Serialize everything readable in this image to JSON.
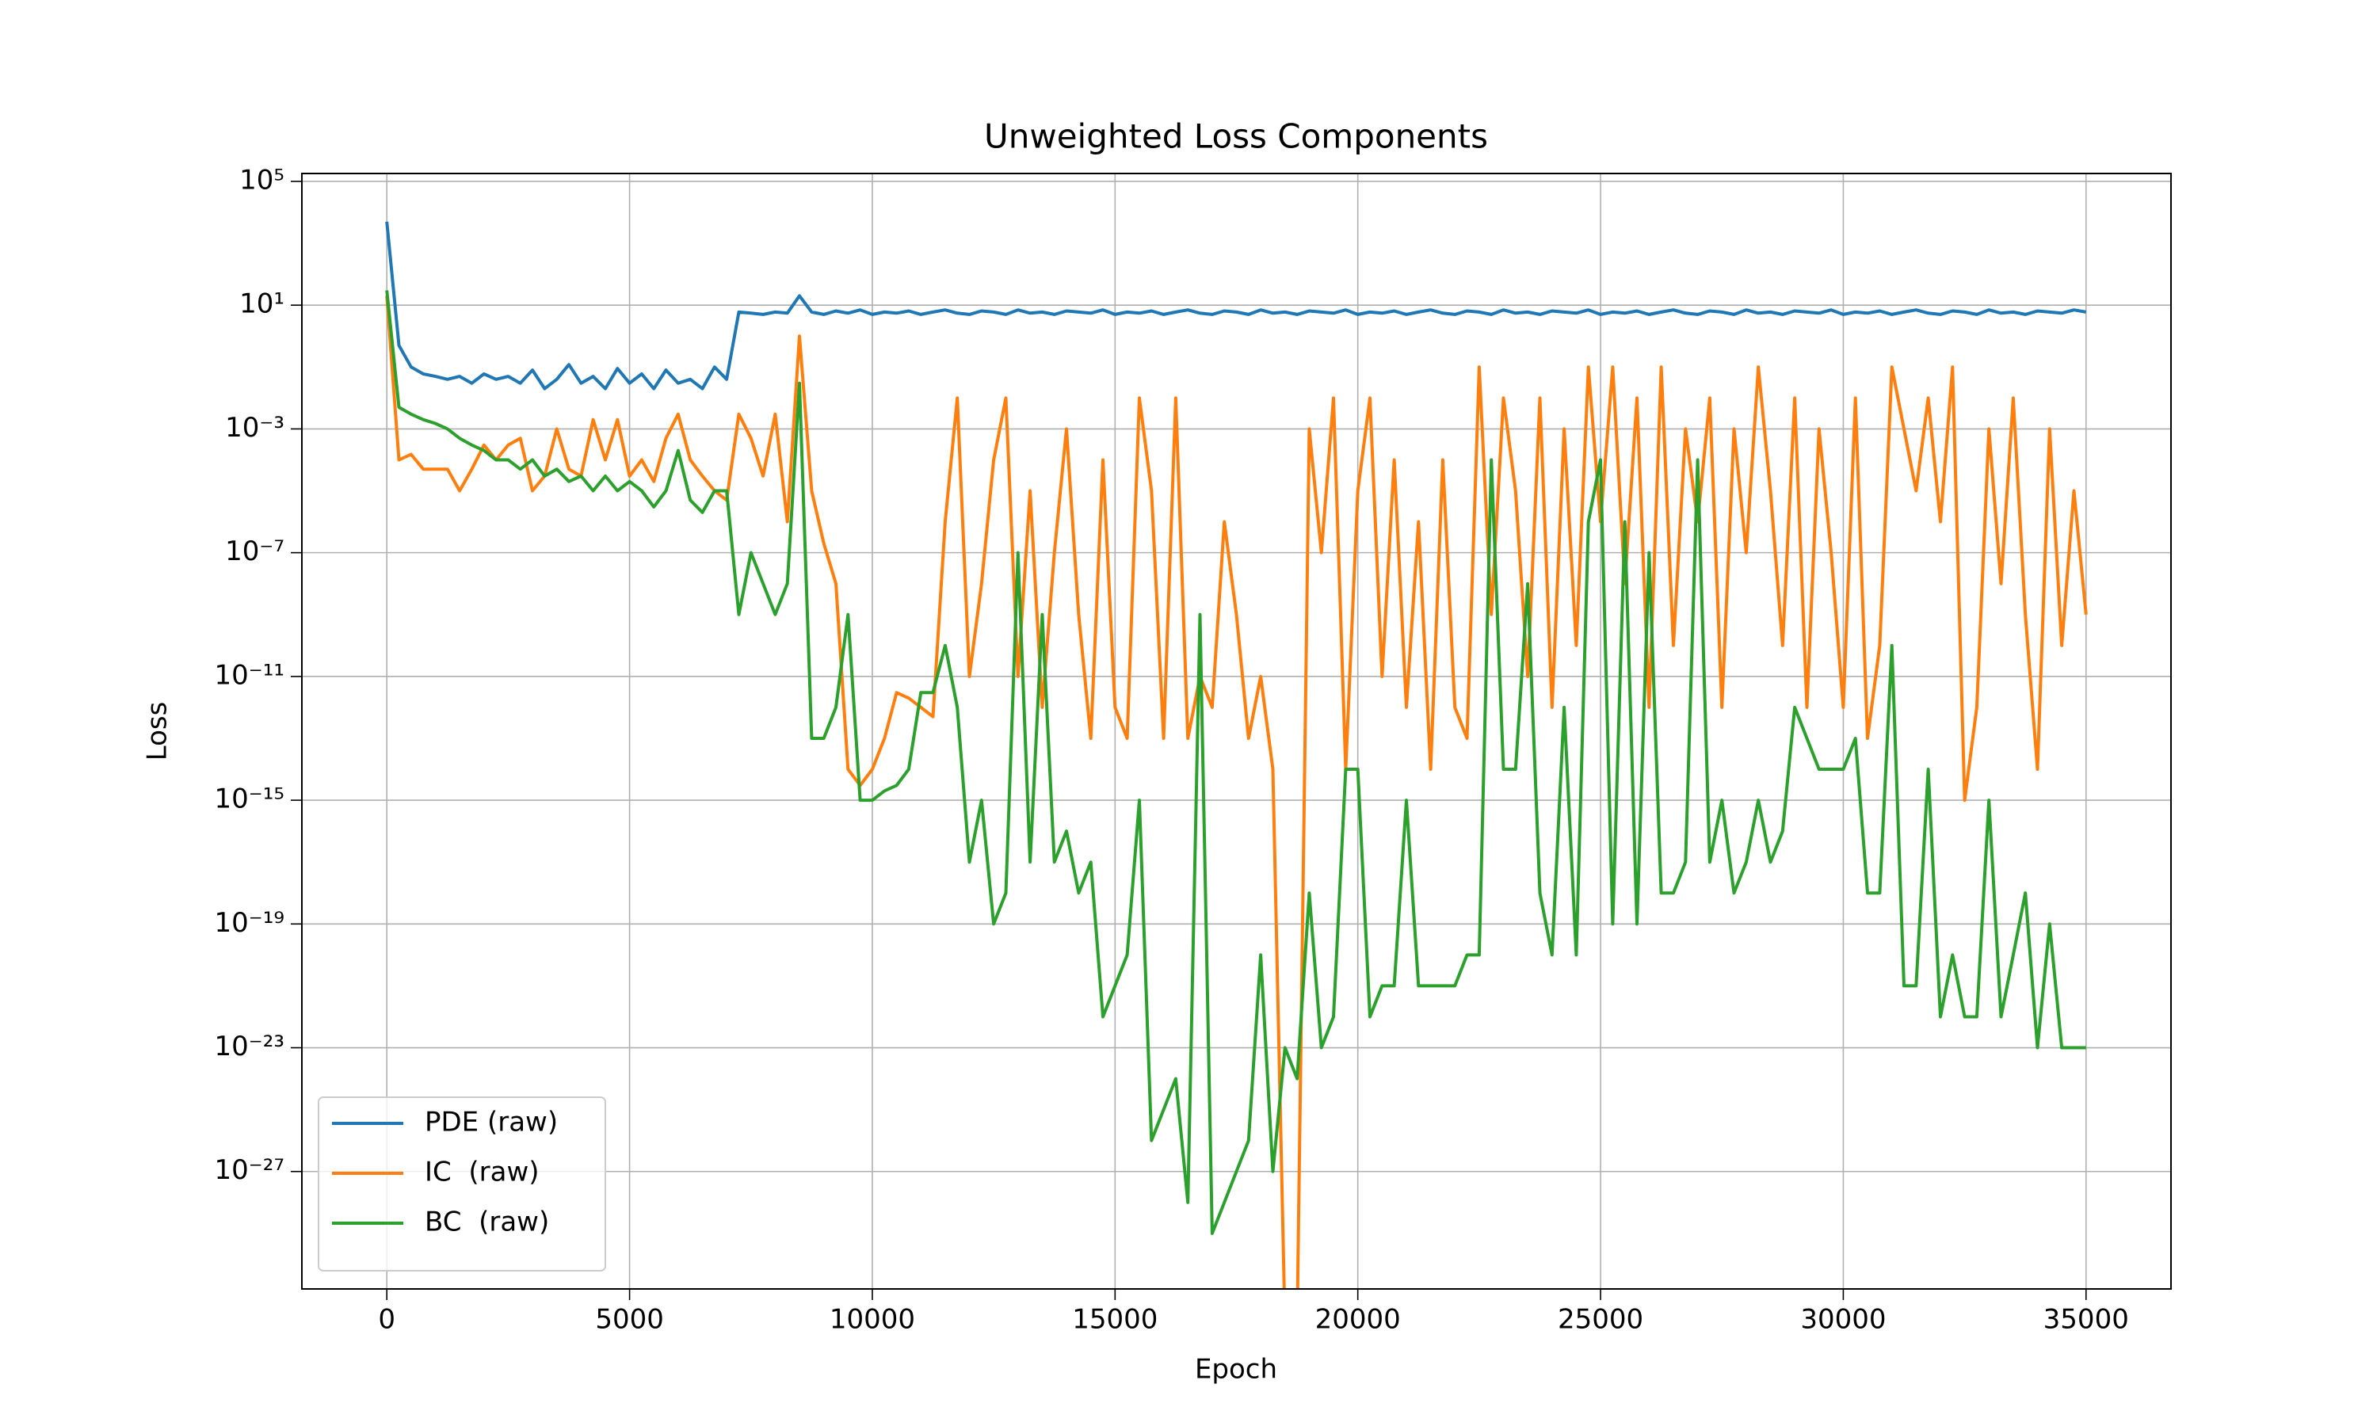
{
  "chart_data": {
    "type": "line",
    "title": "Unweighted Loss Components",
    "x_label": "Epoch",
    "y_label": "Loss",
    "yscale": "log",
    "grid": true,
    "legend": "lower left",
    "xlim": [
      -1750,
      36750
    ],
    "xticks": [
      0,
      5000,
      10000,
      15000,
      20000,
      25000,
      30000,
      35000
    ],
    "ylim": [
      1.6e-31,
      180000.0
    ],
    "yticks": [
      {
        "value": 100000.0,
        "label": "10⁵"
      },
      {
        "value": 10,
        "label": "10¹"
      },
      {
        "value": 0.001,
        "label": "10⁻³"
      },
      {
        "value": 1e-07,
        "label": "10⁻⁷"
      },
      {
        "value": 1e-11,
        "label": "10⁻¹¹"
      },
      {
        "value": 1e-15,
        "label": "10⁻¹⁵"
      },
      {
        "value": 1e-19,
        "label": "10⁻¹⁹"
      },
      {
        "value": 1e-23,
        "label": "10⁻²³"
      },
      {
        "value": 1e-27,
        "label": "10⁻²⁷"
      }
    ],
    "x": [
      0,
      250,
      500,
      750,
      1000,
      1250,
      1500,
      1750,
      2000,
      2250,
      2500,
      2750,
      3000,
      3250,
      3500,
      3750,
      4000,
      4250,
      4500,
      4750,
      5000,
      5250,
      5500,
      5750,
      6000,
      6250,
      6500,
      6750,
      7000,
      7250,
      7500,
      7750,
      8000,
      8250,
      8500,
      8750,
      9000,
      9250,
      9500,
      9750,
      10000,
      10250,
      10500,
      10750,
      11000,
      11250,
      11500,
      11750,
      12000,
      12250,
      12500,
      12750,
      13000,
      13250,
      13500,
      13750,
      14000,
      14250,
      14500,
      14750,
      15000,
      15250,
      15500,
      15750,
      16000,
      16250,
      16500,
      16750,
      17000,
      17250,
      17500,
      17750,
      18000,
      18250,
      18500,
      18750,
      19000,
      19250,
      19500,
      19750,
      20000,
      20250,
      20500,
      20750,
      21000,
      21250,
      21500,
      21750,
      22000,
      22250,
      22500,
      22750,
      23000,
      23250,
      23500,
      23750,
      24000,
      24250,
      24500,
      24750,
      25000,
      25250,
      25500,
      25750,
      26000,
      26250,
      26500,
      26750,
      27000,
      27250,
      27500,
      27750,
      28000,
      28250,
      28500,
      28750,
      29000,
      29250,
      29500,
      29750,
      30000,
      30250,
      30500,
      30750,
      31000,
      31250,
      31500,
      31750,
      32000,
      32250,
      32500,
      32750,
      33000,
      33250,
      33500,
      33750,
      34000,
      34250,
      34500,
      34750,
      35000
    ],
    "series": [
      {
        "name": "PDE (raw)",
        "color": "#1f77b4",
        "values": [
          5000,
          0.5,
          0.1,
          0.06,
          0.05,
          0.04,
          0.05,
          0.03,
          0.06,
          0.04,
          0.05,
          0.03,
          0.08,
          0.02,
          0.04,
          0.12,
          0.03,
          0.05,
          0.02,
          0.09,
          0.03,
          0.06,
          0.02,
          0.08,
          0.03,
          0.04,
          0.02,
          0.1,
          0.04,
          6,
          5.5,
          5,
          6,
          5.5,
          20,
          6,
          5,
          6.5,
          5.5,
          7,
          5,
          6,
          5.5,
          6.5,
          5,
          6,
          7,
          5.5,
          5,
          6.5,
          6,
          5,
          7,
          5.5,
          6,
          5,
          6.5,
          6,
          5.5,
          7,
          5,
          6,
          5.5,
          6.5,
          5,
          6,
          7,
          5.5,
          5,
          6.5,
          6,
          5,
          7,
          5.5,
          6,
          5,
          6.5,
          6,
          5.5,
          7,
          5,
          6,
          5.5,
          6.5,
          5,
          6,
          7,
          5.5,
          5,
          6.5,
          6,
          5,
          7,
          5.5,
          6,
          5,
          6.5,
          6,
          5.5,
          7,
          5,
          6,
          5.5,
          6.5,
          5,
          6,
          7,
          5.5,
          5,
          6.5,
          6,
          5,
          7,
          5.5,
          6,
          5,
          6.5,
          6,
          5.5,
          7,
          5,
          6,
          5.5,
          6.5,
          5,
          6,
          7,
          5.5,
          5,
          6.5,
          6,
          5,
          7,
          5.5,
          6,
          5,
          6.5,
          6,
          5.5,
          7,
          6
        ]
      },
      {
        "name": "IC  (raw)",
        "color": "#ff7f0e",
        "values": [
          20,
          0.0001,
          0.00015,
          5e-05,
          5e-05,
          5e-05,
          1e-05,
          5e-05,
          0.0003,
          0.0001,
          0.0003,
          0.0005,
          1e-05,
          3e-05,
          0.001,
          5e-05,
          3e-05,
          0.002,
          0.0001,
          0.002,
          3e-05,
          0.0001,
          2e-05,
          0.0005,
          0.003,
          0.0001,
          3e-05,
          1e-05,
          5e-06,
          0.003,
          0.0005,
          3e-05,
          0.003,
          1e-06,
          1,
          1e-05,
          2e-07,
          1e-08,
          1e-14,
          3e-15,
          1e-14,
          1e-13,
          3e-12,
          2e-12,
          1e-12,
          5e-13,
          1e-06,
          0.01,
          1e-11,
          1e-08,
          0.0001,
          0.01,
          1e-11,
          1e-05,
          1e-12,
          1e-07,
          0.001,
          1e-09,
          1e-13,
          0.0001,
          1e-12,
          1e-13,
          0.01,
          1e-05,
          1e-13,
          0.01,
          1e-13,
          1e-11,
          1e-12,
          1e-06,
          1e-09,
          1e-13,
          1e-11,
          1e-14,
          1e-32,
          1e-32,
          0.001,
          1e-07,
          0.01,
          1e-14,
          1e-05,
          0.01,
          1e-11,
          0.0001,
          1e-12,
          1e-06,
          1e-14,
          0.0001,
          1e-12,
          1e-13,
          0.1,
          1e-09,
          0.01,
          1e-05,
          1e-11,
          0.01,
          1e-12,
          0.001,
          1e-10,
          0.1,
          1e-06,
          0.1,
          1e-08,
          0.01,
          1e-12,
          0.1,
          1e-10,
          0.001,
          1e-06,
          0.01,
          1e-12,
          0.001,
          1e-07,
          0.1,
          1e-05,
          1e-10,
          0.01,
          1e-12,
          0.001,
          1e-07,
          1e-12,
          0.01,
          1e-13,
          1e-10,
          0.1,
          0.001,
          1e-05,
          0.01,
          1e-06,
          0.1,
          1e-15,
          1e-12,
          0.001,
          1e-08,
          0.01,
          1e-09,
          1e-14,
          0.001,
          1e-10,
          1e-05,
          1e-09
        ]
      },
      {
        "name": "BC  (raw)",
        "color": "#2ca02c",
        "values": [
          30,
          0.005,
          0.003,
          0.002,
          0.0015,
          0.001,
          0.0005,
          0.0003,
          0.0002,
          0.0001,
          0.0001,
          5e-05,
          0.0001,
          3e-05,
          5e-05,
          2e-05,
          3e-05,
          1e-05,
          3e-05,
          1e-05,
          2e-05,
          1e-05,
          3e-06,
          1e-05,
          0.0002,
          5e-06,
          2e-06,
          1e-05,
          1e-05,
          1e-09,
          1e-07,
          1e-08,
          1e-09,
          1e-08,
          0.03,
          1e-13,
          1e-13,
          1e-12,
          1e-09,
          1e-15,
          1e-15,
          2e-15,
          3e-15,
          1e-14,
          3e-12,
          3e-12,
          1e-10,
          1e-12,
          1e-17,
          1e-15,
          1e-19,
          1e-18,
          1e-07,
          1e-17,
          1e-09,
          1e-17,
          1e-16,
          1e-18,
          1e-17,
          1e-22,
          1e-21,
          1e-20,
          1e-15,
          1e-26,
          1e-25,
          1e-24,
          1e-28,
          1e-09,
          1e-29,
          1e-28,
          1e-27,
          1e-26,
          1e-20,
          1e-27,
          1e-23,
          1e-24,
          1e-18,
          1e-23,
          1e-22,
          1e-14,
          1e-14,
          1e-22,
          1e-21,
          1e-21,
          1e-15,
          1e-21,
          1e-21,
          1e-21,
          1e-21,
          1e-20,
          1e-20,
          0.0001,
          1e-14,
          1e-14,
          1e-08,
          1e-18,
          1e-20,
          1e-12,
          1e-20,
          1e-06,
          0.0001,
          1e-19,
          1e-06,
          1e-19,
          1e-07,
          1e-18,
          1e-18,
          1e-17,
          0.0001,
          1e-17,
          1e-15,
          1e-18,
          1e-17,
          1e-15,
          1e-17,
          1e-16,
          1e-12,
          1e-13,
          1e-14,
          1e-14,
          1e-14,
          1e-13,
          1e-18,
          1e-18,
          1e-10,
          1e-21,
          1e-21,
          1e-14,
          1e-22,
          1e-20,
          1e-22,
          1e-22,
          1e-15,
          1e-22,
          1e-20,
          1e-18,
          1e-23,
          1e-19,
          1e-23,
          1e-23,
          1e-23
        ]
      }
    ]
  }
}
